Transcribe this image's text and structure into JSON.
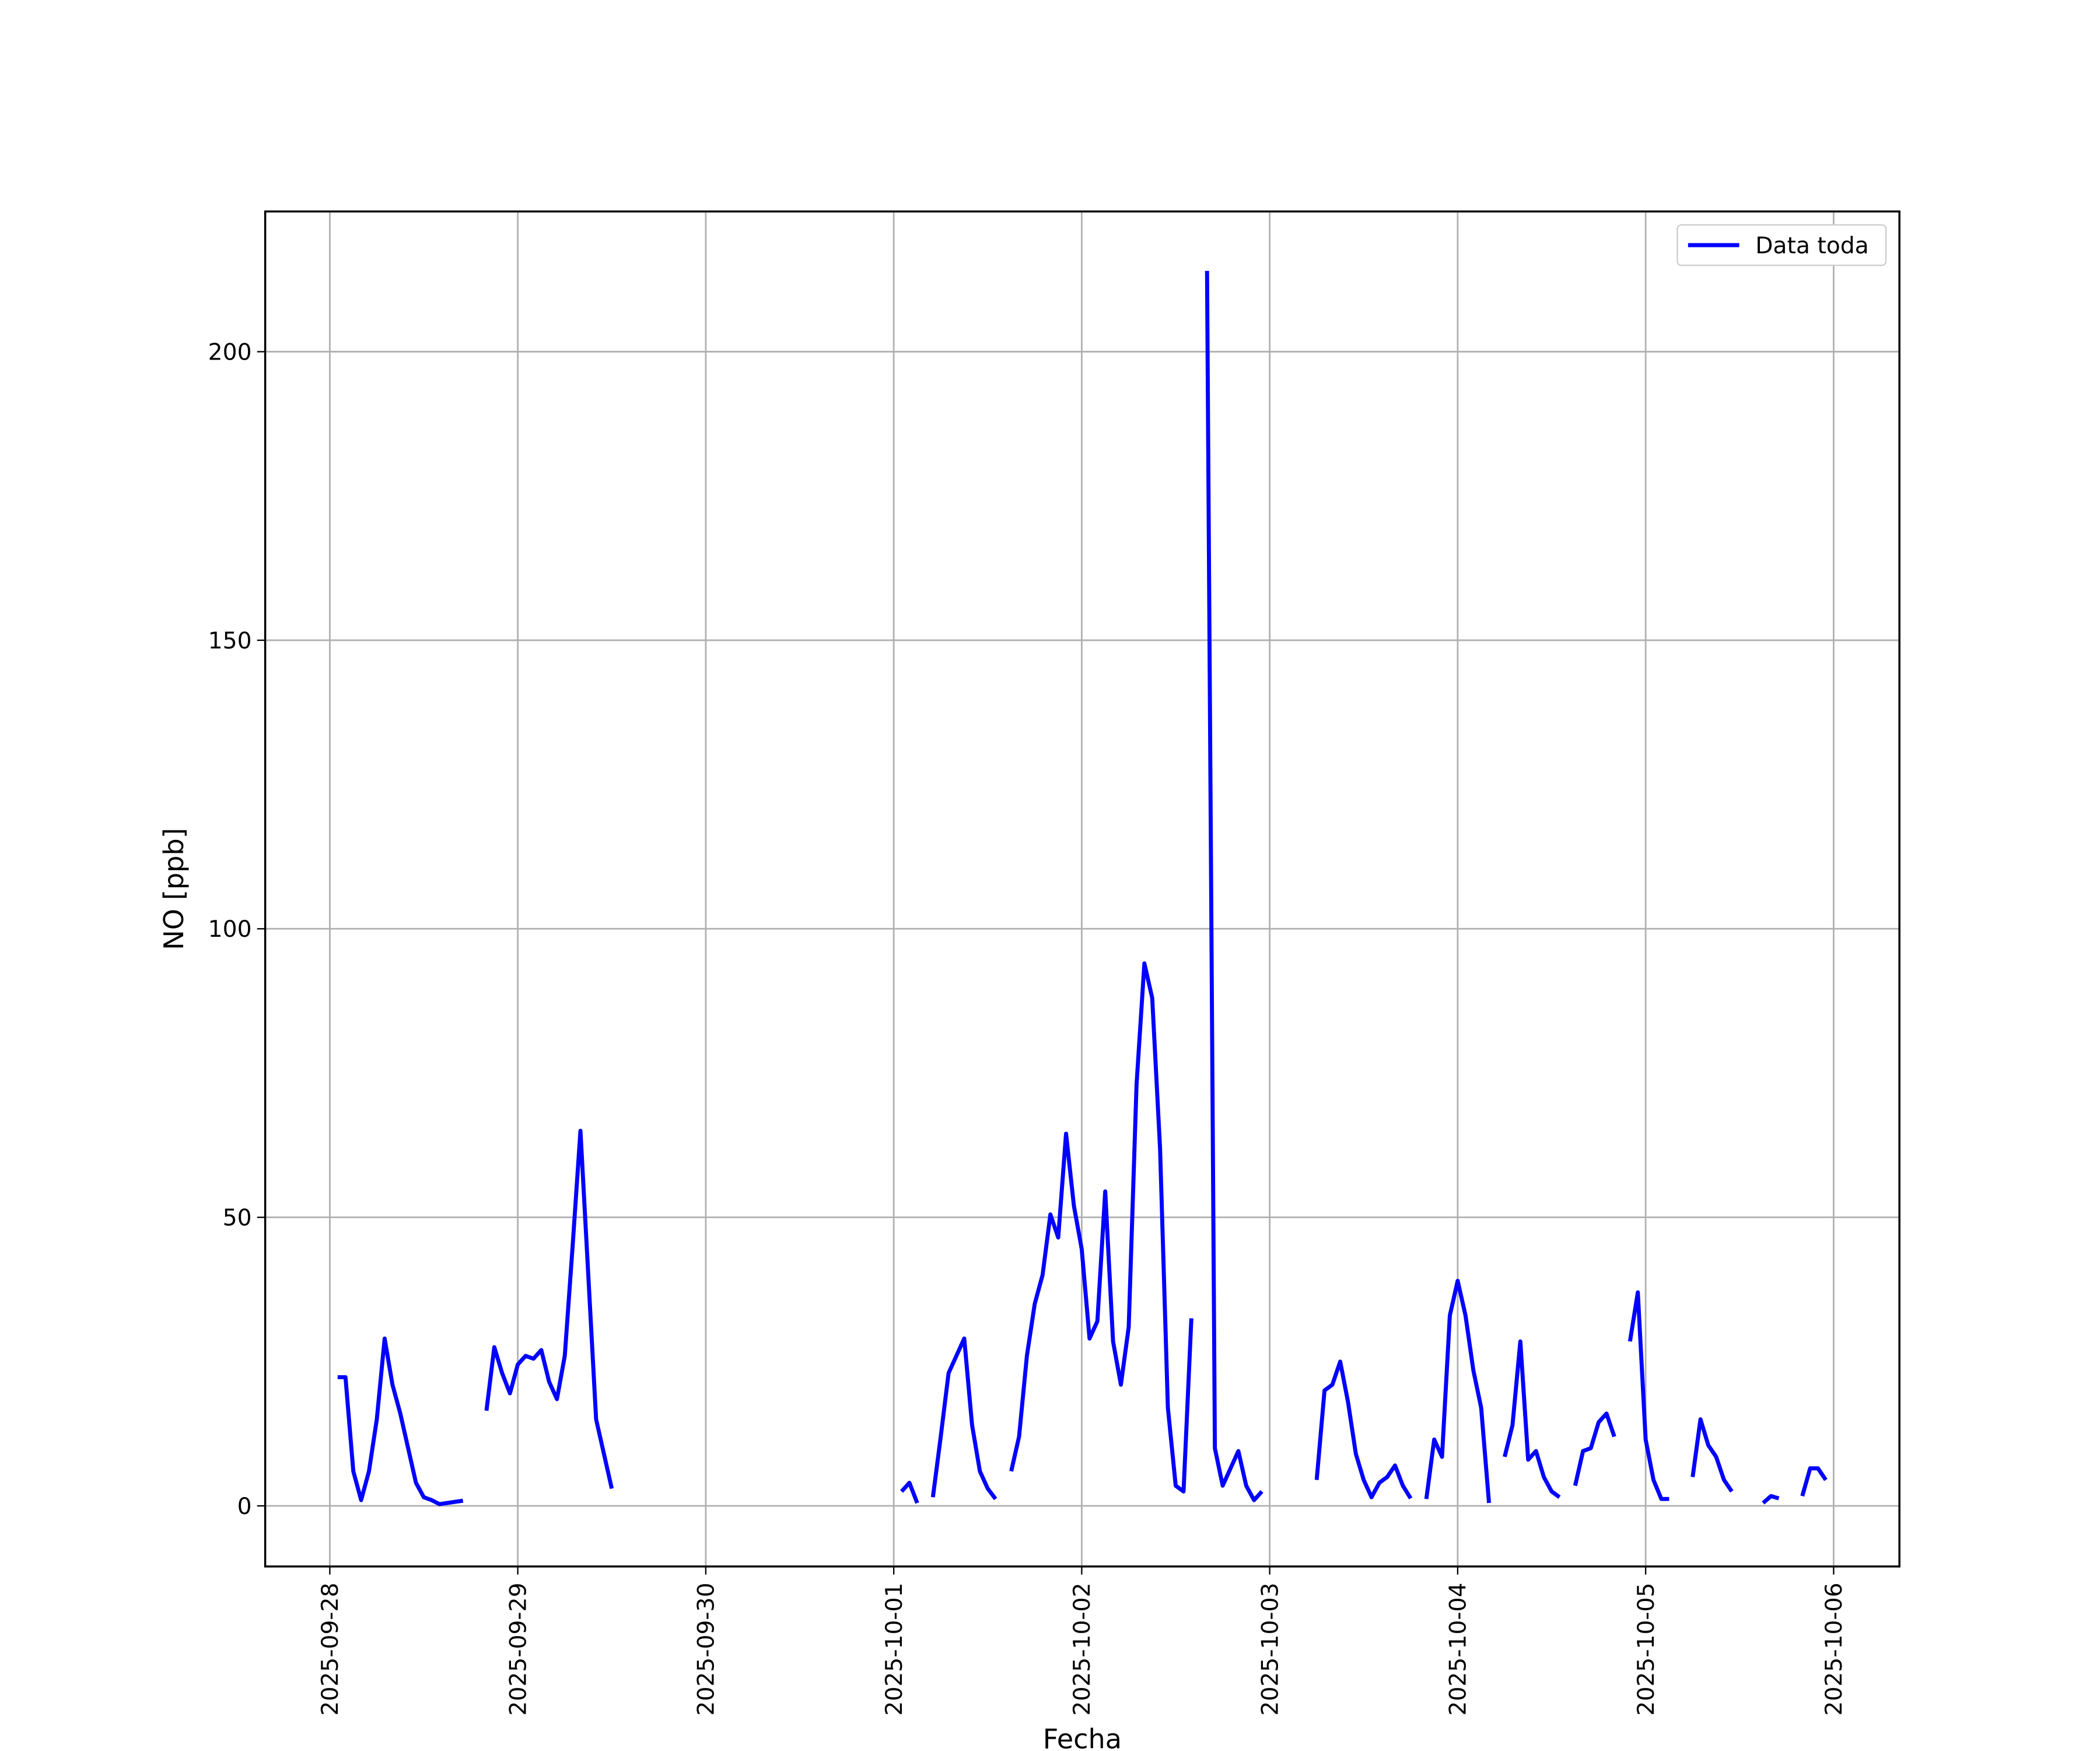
{
  "chart_data": {
    "type": "line",
    "x_label": "Fecha",
    "y_label": "NO [ppb]",
    "xlim": [
      "2025-09-27 15:45",
      "2025-10-06 08:24"
    ],
    "ylim": [
      -10.5,
      224.3
    ],
    "xticks": [
      "2025-09-28",
      "2025-09-29",
      "2025-09-30",
      "2025-10-01",
      "2025-10-02",
      "2025-10-03",
      "2025-10-04",
      "2025-10-05",
      "2025-10-06"
    ],
    "yticks": [
      0,
      50,
      100,
      150,
      200
    ],
    "grid": true,
    "legend": "upper right",
    "x": [
      "2025-09-28 01:00",
      "2025-09-28 02:00",
      "2025-09-28 03:00",
      "2025-09-28 04:00",
      "2025-09-28 05:00",
      "2025-09-28 06:00",
      "2025-09-28 07:00",
      "2025-09-28 08:00",
      "2025-09-28 09:00",
      "2025-09-28 10:00",
      "2025-09-28 11:00",
      "2025-09-28 12:00",
      "2025-09-28 13:00",
      "2025-09-28 14:00",
      "2025-09-28 15:00",
      "2025-09-28 16:00",
      "2025-09-28 17:00",
      "2025-09-28 18:00",
      "2025-09-28 20:00",
      "2025-09-28 21:00",
      "2025-09-28 22:00",
      "2025-09-28 23:00",
      "2025-09-29 00:00",
      "2025-09-29 01:00",
      "2025-09-29 02:00",
      "2025-09-29 03:00",
      "2025-09-29 04:00",
      "2025-09-29 05:00",
      "2025-09-29 06:00",
      "2025-09-29 07:00",
      "2025-09-29 08:00",
      "2025-09-29 09:00",
      "2025-09-29 10:00",
      "2025-09-29 11:00",
      "2025-09-29 12:00",
      "2025-09-29 13:00",
      "2025-10-01 01:00",
      "2025-10-01 02:00",
      "2025-10-01 03:00",
      "2025-10-01 04:00",
      "2025-10-01 05:00",
      "2025-10-01 06:00",
      "2025-10-01 07:00",
      "2025-10-01 08:00",
      "2025-10-01 09:00",
      "2025-10-01 10:00",
      "2025-10-01 11:00",
      "2025-10-01 12:00",
      "2025-10-01 13:00",
      "2025-10-01 14:00",
      "2025-10-01 15:00",
      "2025-10-01 16:00",
      "2025-10-01 17:00",
      "2025-10-01 18:00",
      "2025-10-01 19:00",
      "2025-10-01 20:00",
      "2025-10-01 21:00",
      "2025-10-01 22:00",
      "2025-10-01 23:00",
      "2025-10-02 00:00",
      "2025-10-02 01:00",
      "2025-10-02 02:00",
      "2025-10-02 03:00",
      "2025-10-02 04:00",
      "2025-10-02 05:00",
      "2025-10-02 06:00",
      "2025-10-02 07:00",
      "2025-10-02 08:00",
      "2025-10-02 09:00",
      "2025-10-02 10:00",
      "2025-10-02 11:00",
      "2025-10-02 12:00",
      "2025-10-02 13:00",
      "2025-10-02 14:00",
      "2025-10-02 15:00",
      "2025-10-02 16:00",
      "2025-10-02 17:00",
      "2025-10-02 18:00",
      "2025-10-02 19:00",
      "2025-10-02 20:00",
      "2025-10-02 21:00",
      "2025-10-02 22:00",
      "2025-10-02 23:00",
      "2025-10-03 00:00",
      "2025-10-03 06:00",
      "2025-10-03 07:00",
      "2025-10-03 08:00",
      "2025-10-03 09:00",
      "2025-10-03 10:00",
      "2025-10-03 11:00",
      "2025-10-03 12:00",
      "2025-10-03 13:00",
      "2025-10-03 14:00",
      "2025-10-03 15:00",
      "2025-10-03 16:00",
      "2025-10-03 17:00",
      "2025-10-03 18:00",
      "2025-10-03 19:00",
      "2025-10-03 20:00",
      "2025-10-03 21:00",
      "2025-10-03 22:00",
      "2025-10-03 23:00",
      "2025-10-04 00:00",
      "2025-10-04 01:00",
      "2025-10-04 02:00",
      "2025-10-04 03:00",
      "2025-10-04 04:00",
      "2025-10-04 05:00",
      "2025-10-04 06:00",
      "2025-10-04 07:00",
      "2025-10-04 08:00",
      "2025-10-04 09:00",
      "2025-10-04 10:00",
      "2025-10-04 11:00",
      "2025-10-04 12:00",
      "2025-10-04 13:00",
      "2025-10-04 14:00",
      "2025-10-04 15:00",
      "2025-10-04 16:00",
      "2025-10-04 17:00",
      "2025-10-04 18:00",
      "2025-10-04 19:00",
      "2025-10-04 20:00",
      "2025-10-04 21:00",
      "2025-10-04 22:00",
      "2025-10-04 23:00",
      "2025-10-05 00:00",
      "2025-10-05 01:00",
      "2025-10-05 02:00",
      "2025-10-05 03:00",
      "2025-10-05 04:00",
      "2025-10-05 06:00",
      "2025-10-05 07:00",
      "2025-10-05 08:00",
      "2025-10-05 09:00",
      "2025-10-05 10:00",
      "2025-10-05 11:00",
      "2025-10-05 12:00",
      "2025-10-05 15:00",
      "2025-10-05 16:00",
      "2025-10-05 17:00",
      "2025-10-05 18:00",
      "2025-10-05 20:00",
      "2025-10-05 21:00",
      "2025-10-05 22:00",
      "2025-10-05 23:00"
    ],
    "series": [
      {
        "name": "Data toda",
        "color": "#0000ff",
        "values": [
          22.3,
          22.3,
          6,
          1,
          6,
          15,
          29,
          21,
          16,
          10,
          4,
          1.5,
          1,
          0.3,
          0.5,
          0.7,
          0.9,
          null,
          16.5,
          27.5,
          23,
          19.5,
          24.5,
          26,
          25.5,
          27,
          21.5,
          18.5,
          26,
          45,
          65,
          40,
          15,
          9,
          3,
          null,
          2.5,
          4,
          0.5,
          null,
          1.5,
          12,
          23,
          26,
          29,
          14,
          6,
          3,
          1.2,
          null,
          6,
          12,
          26,
          35,
          40,
          50.5,
          46.5,
          64.5,
          52,
          44.5,
          29,
          32,
          54.5,
          28.5,
          21,
          31,
          73,
          94,
          88,
          62,
          17,
          3.5,
          2.5,
          32.5,
          null,
          214,
          10,
          3.5,
          6.5,
          9.5,
          3.5,
          1,
          2.5,
          null,
          4.5,
          20,
          21,
          25,
          18,
          9,
          4.5,
          1.5,
          4,
          5,
          7,
          3.5,
          1.3,
          null,
          1.2,
          11.5,
          8.5,
          33,
          39,
          33,
          23.5,
          17,
          0.5,
          null,
          8.5,
          14,
          28.5,
          8,
          9.5,
          5,
          2.5,
          1.5,
          null,
          3.5,
          9.5,
          10,
          14.5,
          16,
          12,
          null,
          28.5,
          37,
          11.5,
          4.5,
          1.2,
          1.2,
          null,
          5,
          15,
          10.5,
          8.5,
          4.5,
          2.5,
          null,
          0.5,
          1.7,
          1.3,
          null,
          1.7,
          6.5,
          6.5,
          4.5
        ]
      }
    ]
  }
}
